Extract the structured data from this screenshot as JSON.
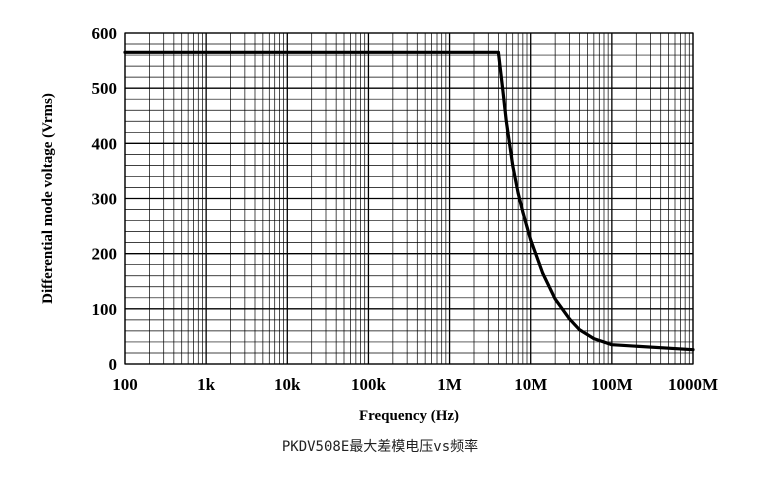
{
  "caption": "PKDV508E最大差模电压vs频率",
  "chart_data": {
    "type": "line",
    "title": "",
    "xlabel": "Frequency (Hz)",
    "ylabel": "Differential mode voltage (Vrms)",
    "x_scale": "log",
    "xlim": [
      100,
      1000000000
    ],
    "ylim": [
      0,
      600
    ],
    "grid": true,
    "x_ticks": [
      {
        "value": 100,
        "label": "100"
      },
      {
        "value": 1000,
        "label": "1k"
      },
      {
        "value": 10000,
        "label": "10k"
      },
      {
        "value": 100000,
        "label": "100k"
      },
      {
        "value": 1000000,
        "label": "1M"
      },
      {
        "value": 10000000,
        "label": "10M"
      },
      {
        "value": 100000000,
        "label": "100M"
      },
      {
        "value": 1000000000,
        "label": "1000M"
      }
    ],
    "y_ticks": [
      0,
      100,
      200,
      300,
      400,
      500,
      600
    ],
    "y_minor_step": 20,
    "series": [
      {
        "name": "",
        "color": "#000000",
        "points": [
          [
            100,
            565
          ],
          [
            4000000,
            565
          ],
          [
            4500000,
            500
          ],
          [
            5000000,
            440
          ],
          [
            6000000,
            360
          ],
          [
            7000000,
            310
          ],
          [
            8000000,
            275
          ],
          [
            10000000,
            225
          ],
          [
            14000000,
            165
          ],
          [
            20000000,
            118
          ],
          [
            30000000,
            82
          ],
          [
            40000000,
            62
          ],
          [
            60000000,
            46
          ],
          [
            100000000,
            35
          ],
          [
            1000000000,
            26
          ]
        ]
      }
    ]
  }
}
